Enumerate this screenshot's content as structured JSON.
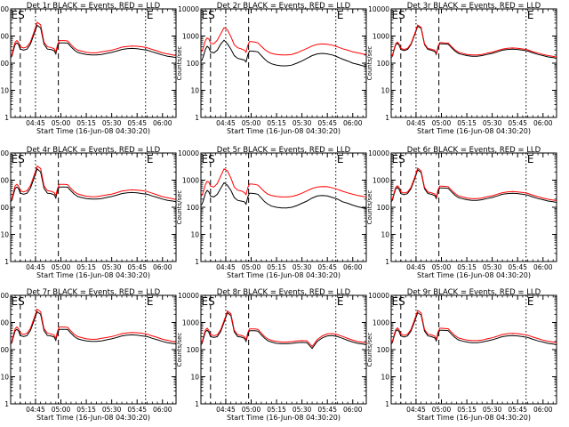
{
  "chart_data": {
    "type": "line",
    "xlabel": "Start Time (16-Jun-08 04:30:20)",
    "ylabel": "Counts/sec",
    "x_tick_labels": [
      "04:45",
      "05:00",
      "05:15",
      "05:30",
      "05:45",
      "06:00"
    ],
    "x_tick_minutes": [
      45,
      60,
      75,
      90,
      105,
      120
    ],
    "x_range_minutes": [
      30.33,
      128
    ],
    "y_scale": "log",
    "y_tick_labels": [
      "1",
      "10",
      "100",
      "1000",
      "10000"
    ],
    "y_tick_values": [
      1,
      10,
      100,
      1000,
      10000
    ],
    "y_range": [
      1,
      10000
    ],
    "colors": {
      "events": "#000000",
      "lld": "#ff0000"
    },
    "markers": {
      "dashed_lines_minutes": [
        36,
        58.5
      ],
      "dotted_lines_minutes": [
        45,
        110
      ],
      "letters": [
        "E",
        "S",
        "E"
      ]
    },
    "series_x_minutes": [
      30.33,
      31,
      32,
      33,
      34,
      35,
      36,
      38,
      40,
      42,
      44,
      46,
      48,
      50,
      52,
      54,
      56,
      57,
      58,
      59,
      60,
      62,
      64,
      66,
      68,
      70,
      72,
      75,
      78,
      81,
      84,
      87,
      90,
      93,
      96,
      99,
      102,
      105,
      108,
      111,
      114,
      117,
      120,
      123,
      126,
      128
    ],
    "panels": [
      {
        "title": "Det 1r BLACK = Events, RED = LLD",
        "events": [
          160,
          180,
          300,
          500,
          560,
          480,
          330,
          300,
          330,
          500,
          1100,
          2500,
          2000,
          500,
          330,
          320,
          290,
          220,
          400,
          560,
          560,
          560,
          550,
          400,
          300,
          250,
          230,
          210,
          200,
          200,
          210,
          230,
          250,
          280,
          320,
          340,
          350,
          340,
          320,
          300,
          260,
          230,
          200,
          180,
          170,
          160
        ],
        "lld": [
          180,
          200,
          360,
          600,
          680,
          590,
          400,
          360,
          400,
          600,
          1350,
          3200,
          2600,
          600,
          400,
          380,
          340,
          260,
          480,
          680,
          680,
          680,
          660,
          480,
          360,
          300,
          280,
          250,
          240,
          240,
          260,
          280,
          300,
          340,
          390,
          410,
          430,
          420,
          400,
          370,
          320,
          280,
          240,
          220,
          200,
          190
        ]
      },
      {
        "title": "Det 2r BLACK = Events, RED = LLD",
        "events": [
          120,
          130,
          200,
          330,
          420,
          370,
          260,
          240,
          300,
          500,
          700,
          520,
          330,
          190,
          150,
          140,
          130,
          110,
          200,
          280,
          280,
          270,
          260,
          190,
          140,
          110,
          95,
          85,
          80,
          80,
          85,
          100,
          120,
          150,
          190,
          220,
          230,
          220,
          200,
          170,
          140,
          120,
          100,
          90,
          80,
          75
        ],
        "lld": [
          250,
          280,
          420,
          700,
          850,
          780,
          540,
          520,
          700,
          1200,
          2000,
          1700,
          950,
          480,
          370,
          340,
          300,
          250,
          450,
          620,
          620,
          600,
          560,
          420,
          320,
          260,
          230,
          210,
          200,
          200,
          210,
          240,
          290,
          350,
          430,
          490,
          510,
          500,
          460,
          400,
          340,
          300,
          260,
          240,
          220,
          210
        ]
      },
      {
        "title": "Det 3r BLACK = Events, RED = LLD",
        "events": [
          160,
          180,
          300,
          480,
          540,
          460,
          320,
          290,
          320,
          480,
          1000,
          2300,
          1900,
          480,
          320,
          300,
          270,
          210,
          380,
          520,
          520,
          510,
          500,
          370,
          280,
          230,
          210,
          190,
          180,
          180,
          190,
          210,
          230,
          260,
          300,
          320,
          330,
          320,
          300,
          280,
          240,
          210,
          190,
          170,
          160,
          150
        ],
        "lld": [
          170,
          195,
          330,
          520,
          600,
          510,
          350,
          320,
          350,
          520,
          1100,
          2550,
          2100,
          520,
          350,
          330,
          300,
          230,
          420,
          570,
          570,
          560,
          550,
          410,
          310,
          255,
          235,
          210,
          200,
          200,
          210,
          235,
          255,
          290,
          330,
          355,
          365,
          355,
          335,
          310,
          265,
          235,
          210,
          190,
          178,
          168
        ]
      },
      {
        "title": "Det 4r BLACK = Events, RED = LLD",
        "events": [
          160,
          180,
          300,
          500,
          560,
          480,
          330,
          300,
          330,
          500,
          1100,
          2600,
          2000,
          500,
          330,
          320,
          290,
          220,
          400,
          560,
          560,
          560,
          550,
          400,
          300,
          250,
          230,
          210,
          200,
          200,
          210,
          230,
          250,
          280,
          320,
          340,
          350,
          340,
          320,
          300,
          260,
          230,
          200,
          180,
          170,
          160
        ],
        "lld": [
          185,
          210,
          370,
          620,
          700,
          600,
          410,
          370,
          410,
          620,
          1400,
          3300,
          2700,
          620,
          410,
          390,
          350,
          270,
          490,
          700,
          700,
          700,
          680,
          490,
          370,
          310,
          285,
          255,
          245,
          245,
          265,
          285,
          305,
          345,
          395,
          420,
          440,
          430,
          410,
          380,
          330,
          285,
          245,
          225,
          205,
          195
        ]
      },
      {
        "title": "Det 5r BLACK = Events, RED = LLD",
        "events": [
          120,
          130,
          200,
          330,
          420,
          370,
          260,
          240,
          300,
          500,
          800,
          650,
          420,
          230,
          180,
          170,
          160,
          130,
          240,
          330,
          330,
          320,
          300,
          220,
          160,
          130,
          110,
          100,
          95,
          95,
          100,
          115,
          140,
          170,
          220,
          260,
          270,
          260,
          230,
          200,
          160,
          140,
          120,
          105,
          95,
          90
        ],
        "lld": [
          250,
          280,
          420,
          700,
          900,
          850,
          600,
          560,
          750,
          1400,
          2600,
          2200,
          1200,
          560,
          430,
          400,
          350,
          290,
          530,
          720,
          720,
          700,
          650,
          490,
          370,
          300,
          270,
          250,
          240,
          240,
          250,
          280,
          330,
          400,
          490,
          560,
          580,
          570,
          520,
          460,
          390,
          340,
          300,
          270,
          250,
          240
        ]
      },
      {
        "title": "Det 6r BLACK = Events, RED = LLD",
        "events": [
          160,
          180,
          300,
          480,
          540,
          460,
          320,
          290,
          320,
          480,
          1000,
          2400,
          1900,
          480,
          320,
          300,
          270,
          210,
          380,
          520,
          520,
          510,
          500,
          370,
          280,
          230,
          210,
          190,
          180,
          180,
          190,
          210,
          230,
          260,
          300,
          320,
          330,
          320,
          300,
          280,
          240,
          210,
          190,
          170,
          160,
          150
        ],
        "lld": [
          175,
          200,
          340,
          540,
          620,
          530,
          365,
          335,
          365,
          540,
          1150,
          2750,
          2200,
          540,
          365,
          345,
          310,
          240,
          440,
          600,
          600,
          590,
          575,
          430,
          325,
          265,
          245,
          220,
          210,
          210,
          220,
          245,
          265,
          300,
          345,
          370,
          380,
          370,
          350,
          325,
          280,
          245,
          220,
          198,
          185,
          175
        ]
      },
      {
        "title": "Det 7r BLACK = Events, RED = LLD",
        "events": [
          160,
          180,
          300,
          500,
          560,
          480,
          330,
          300,
          330,
          500,
          1100,
          2500,
          2000,
          500,
          330,
          320,
          290,
          220,
          400,
          560,
          560,
          560,
          550,
          400,
          300,
          250,
          230,
          210,
          200,
          200,
          210,
          230,
          250,
          280,
          320,
          340,
          350,
          340,
          320,
          300,
          260,
          230,
          200,
          180,
          170,
          160
        ],
        "lld": [
          180,
          205,
          360,
          600,
          680,
          590,
          400,
          360,
          400,
          600,
          1350,
          3100,
          2500,
          600,
          400,
          380,
          340,
          260,
          480,
          680,
          680,
          680,
          660,
          480,
          360,
          300,
          280,
          250,
          240,
          240,
          260,
          280,
          300,
          340,
          390,
          410,
          430,
          420,
          400,
          370,
          320,
          280,
          240,
          220,
          200,
          190
        ]
      },
      {
        "title": "Det 8r BLACK = Events, RED = LLD",
        "events": [
          150,
          170,
          280,
          460,
          520,
          440,
          300,
          280,
          300,
          460,
          1000,
          2300,
          1800,
          450,
          300,
          290,
          260,
          200,
          360,
          500,
          500,
          500,
          480,
          350,
          260,
          210,
          190,
          170,
          165,
          165,
          170,
          180,
          185,
          180,
          110,
          200,
          270,
          320,
          330,
          300,
          260,
          220,
          190,
          170,
          160,
          150
        ],
        "lld": [
          170,
          190,
          330,
          540,
          610,
          520,
          350,
          330,
          350,
          540,
          1150,
          2650,
          2100,
          520,
          350,
          335,
          300,
          230,
          420,
          580,
          580,
          580,
          560,
          410,
          300,
          245,
          220,
          200,
          190,
          190,
          198,
          210,
          215,
          210,
          130,
          235,
          320,
          380,
          390,
          355,
          305,
          258,
          222,
          198,
          186,
          175
        ]
      },
      {
        "title": "Det 9r BLACK = Events, RED = LLD",
        "events": [
          160,
          180,
          300,
          480,
          540,
          460,
          320,
          290,
          320,
          480,
          1000,
          2300,
          1900,
          480,
          320,
          300,
          270,
          210,
          380,
          520,
          520,
          510,
          500,
          370,
          280,
          230,
          210,
          190,
          180,
          180,
          190,
          210,
          230,
          260,
          300,
          320,
          330,
          320,
          300,
          280,
          240,
          210,
          190,
          170,
          160,
          150
        ],
        "lld": [
          175,
          200,
          340,
          550,
          630,
          540,
          370,
          340,
          370,
          550,
          1180,
          2800,
          2250,
          550,
          370,
          350,
          315,
          245,
          445,
          610,
          610,
          600,
          585,
          435,
          330,
          270,
          250,
          225,
          215,
          215,
          225,
          250,
          272,
          310,
          360,
          385,
          398,
          388,
          365,
          340,
          290,
          255,
          225,
          203,
          190,
          180
        ]
      }
    ]
  }
}
